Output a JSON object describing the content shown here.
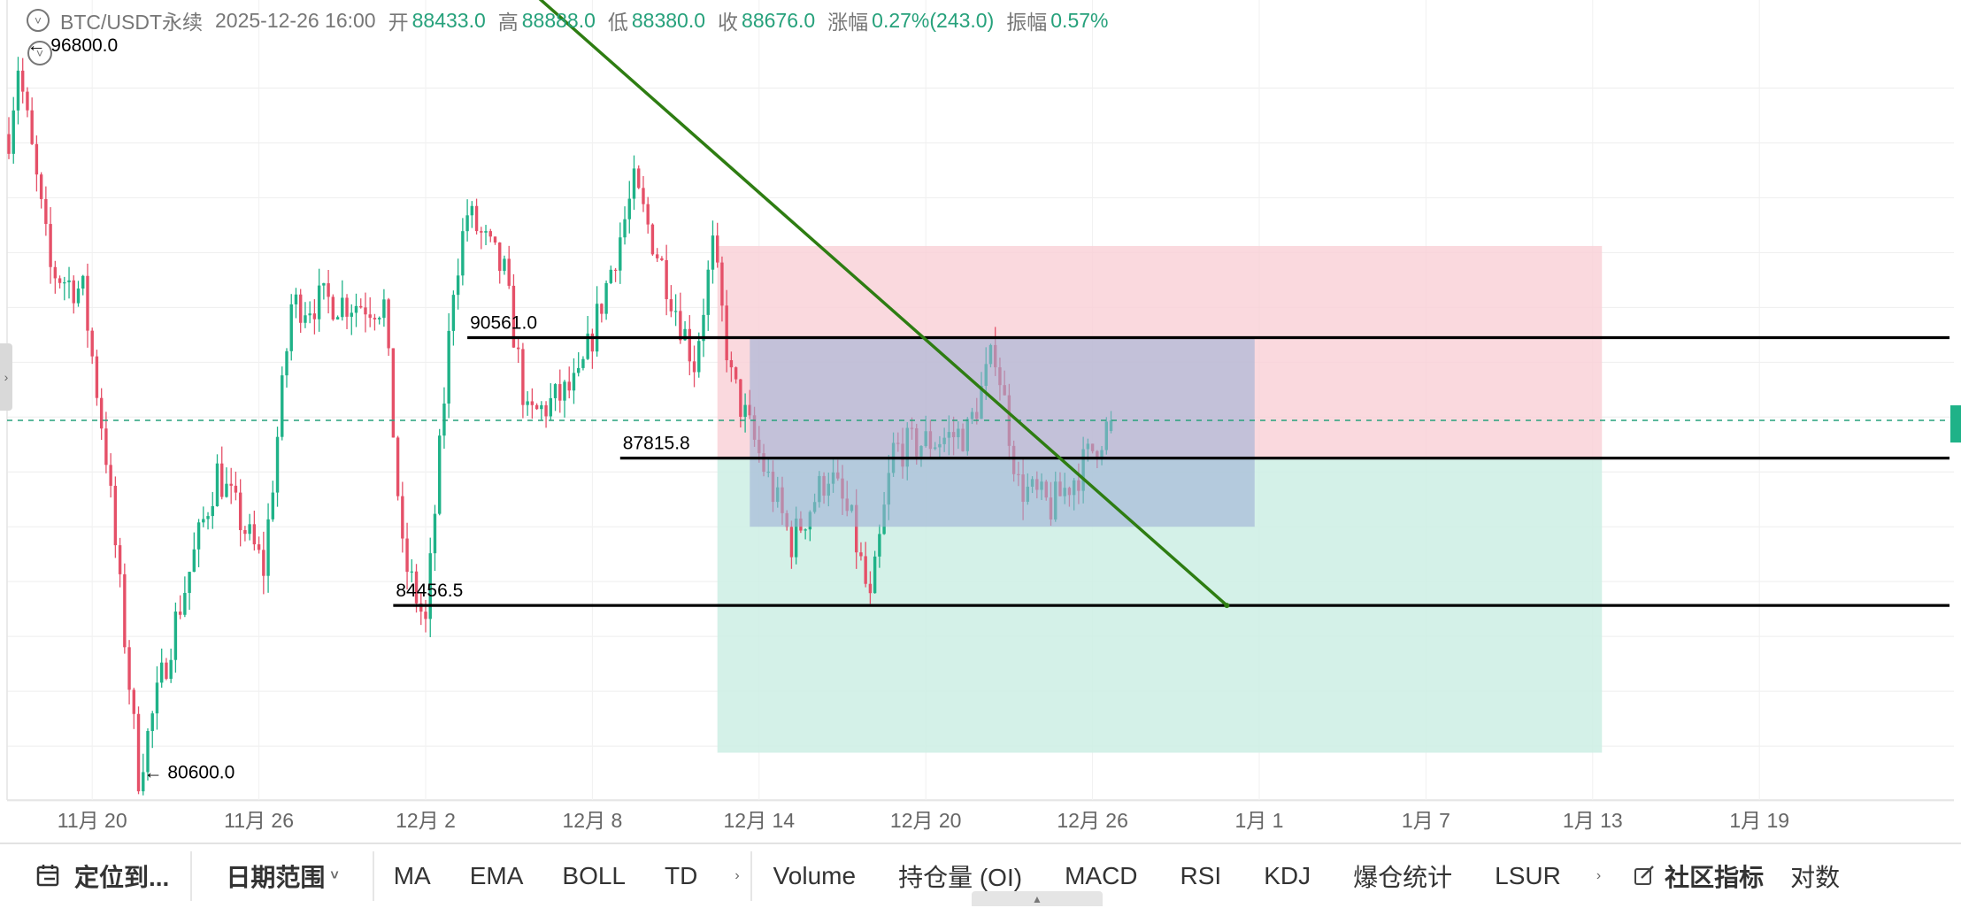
{
  "header": {
    "symbol": "BTC/USDT永续",
    "datetime": "2025-12-26 16:00",
    "open_label": "开",
    "open": "88433.0",
    "high_label": "高",
    "high": "88888.0",
    "low_label": "低",
    "low": "88380.0",
    "close_label": "收",
    "close": "88676.0",
    "change_label": "涨幅",
    "change": "0.27%(243.0)",
    "amplitude_label": "振幅",
    "amplitude": "0.57%",
    "collapse_icon": "chevron-down-circle-icon"
  },
  "markers": {
    "high_label": "96800.0",
    "low_label": "80600.0",
    "arrow": "←"
  },
  "colors": {
    "up": "#1fb288",
    "down": "#e55068",
    "trendline": "#2e7d12",
    "stop_zone": "#f9d0d6",
    "target_zone": "#cdeee4",
    "range_box": "#9fb1d6",
    "level_line": "#000000",
    "current_price_line": "#26a17b",
    "header_value": "#26a17b"
  },
  "chart_data": {
    "type": "candlestick",
    "timeframe": "4h",
    "x_ticks": [
      "11月 20",
      "11月 26",
      "12月 2",
      "12月 8",
      "12月 14",
      "12月 20",
      "12月 26",
      "1月 1",
      "1月 7",
      "1月 13",
      "1月 19"
    ],
    "price_range": [
      79900,
      97450
    ],
    "price_extremes": {
      "high": 96800.0,
      "low": 80600.0
    },
    "levels": [
      90561.0,
      87815.8,
      84456.5
    ],
    "level_labels": [
      "90561.0",
      "87815.8",
      "84456.5"
    ],
    "current_price": 88676.0,
    "last_candle": {
      "time": "2025-12-26 16:00",
      "open": 88433.0,
      "high": 88888.0,
      "low": 88380.0,
      "close": 88676.0
    },
    "anchors": [
      [
        "11/17 00:00",
        95200
      ],
      [
        "11/17 08:00",
        96800
      ],
      [
        "11/18 12:00",
        92100
      ],
      [
        "11/19 16:00",
        91600
      ],
      [
        "11/20 12:00",
        87900
      ],
      [
        "11/21 16:00",
        80600
      ],
      [
        "11/23 00:00",
        84100
      ],
      [
        "11/24 12:00",
        87500
      ],
      [
        "11/26 04:00",
        85300
      ],
      [
        "11/27 04:00",
        91300
      ],
      [
        "11/28 12:00",
        91400
      ],
      [
        "11/30 12:00",
        91300
      ],
      [
        "12/1 04:00",
        85600
      ],
      [
        "12/2 00:00",
        84000
      ],
      [
        "12/3 00:00",
        91800
      ],
      [
        "12/3 12:00",
        93400
      ],
      [
        "12/4 20:00",
        92000
      ],
      [
        "12/5 16:00",
        88700
      ],
      [
        "12/7 12:00",
        89500
      ],
      [
        "12/9 12:00",
        94000
      ],
      [
        "12/10 12:00",
        92200
      ],
      [
        "12/11 16:00",
        90000
      ],
      [
        "12/12 08:00",
        92600
      ],
      [
        "12/13 00:00",
        89600
      ],
      [
        "12/15 04:00",
        85900
      ],
      [
        "12/16 12:00",
        87500
      ],
      [
        "12/17 08:00",
        86300
      ],
      [
        "12/18 00:00",
        84456.5
      ],
      [
        "12/18 20:00",
        88000
      ],
      [
        "12/21 12:00",
        88400
      ],
      [
        "12/22 12:00",
        90300
      ],
      [
        "12/23 08:00",
        87200
      ],
      [
        "12/24 12:00",
        86700
      ],
      [
        "12/25 12:00",
        87500
      ],
      [
        "12/26 16:00",
        88676
      ]
    ],
    "trendline": {
      "from": [
        "12/5 00:00",
        98900
      ],
      "to": [
        "12/30 20:00",
        84456.5
      ]
    },
    "risk_reward": {
      "x_range": [
        "12/12 12:00",
        "1/13 08:00"
      ],
      "entry": 87815.8,
      "stop": 92650,
      "target": 81100
    },
    "range_box": {
      "x_range": [
        "12/13 16:00",
        "12/31 20:00"
      ],
      "top": 90561.0,
      "bottom": 86250
    },
    "level_spans": [
      {
        "price": 90561.0,
        "from": "12/3 12:00"
      },
      {
        "price": 87815.8,
        "from": "12/9 00:00"
      },
      {
        "price": 84456.5,
        "from": "11/30 20:00"
      }
    ]
  },
  "toolbar": {
    "locate_label": "定位到...",
    "date_range_label": "日期范围",
    "date_range_arrow": "˅",
    "more_arrow": "›",
    "indicators": [
      "MA",
      "EMA",
      "BOLL",
      "TD"
    ],
    "sub_indicators": [
      "Volume",
      "持仓量 (OI)",
      "MACD",
      "RSI",
      "KDJ",
      "爆仓统计",
      "LSUR"
    ],
    "community_label": "社区指标",
    "log_label": "对数"
  }
}
